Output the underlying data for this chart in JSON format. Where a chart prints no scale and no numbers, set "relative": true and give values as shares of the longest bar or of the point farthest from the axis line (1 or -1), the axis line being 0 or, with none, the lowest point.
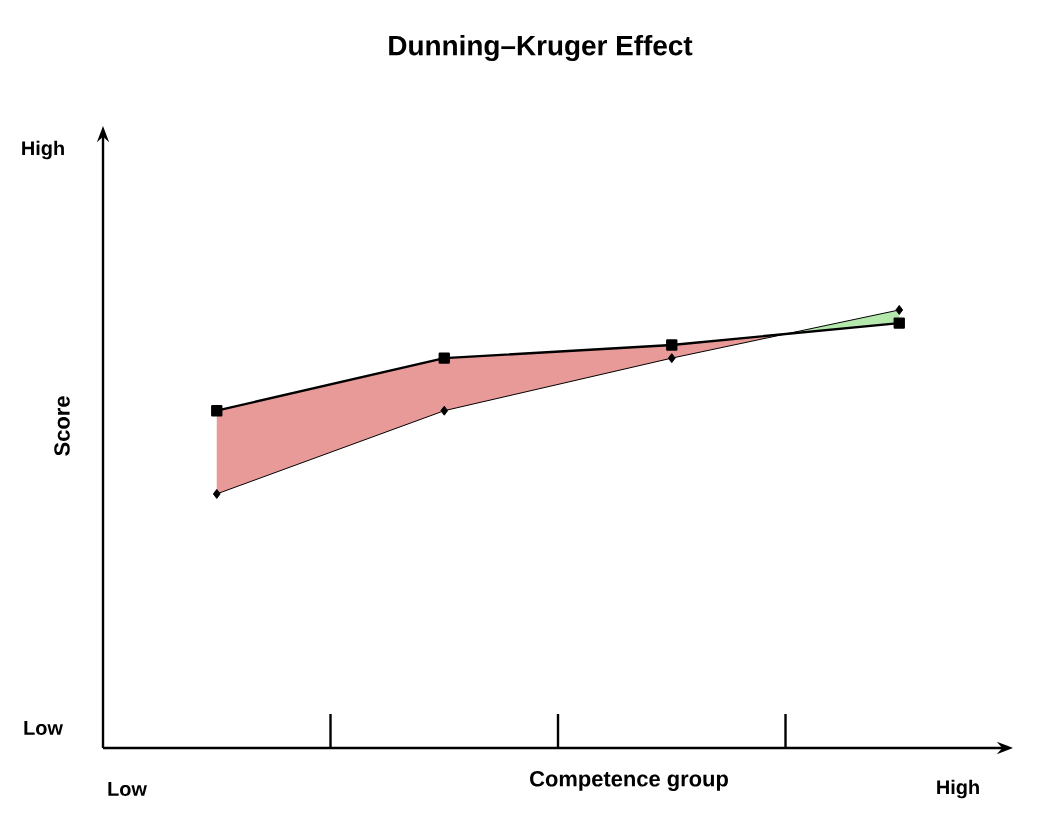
{
  "chart_data": {
    "type": "line",
    "title": "Dunning–Kruger Effect",
    "xlabel": "Competence group",
    "ylabel": "Score",
    "relative": true,
    "categories": [
      null,
      null,
      null,
      null
    ],
    "series": [
      {
        "color": "#000000",
        "marker": "square",
        "values": [
          0.77,
          0.89,
          0.92,
          0.97
        ]
      },
      {
        "color": "#000000",
        "marker": "diamond",
        "values": [
          0.58,
          0.77,
          0.89,
          1.0
        ]
      }
    ],
    "annotations": [
      "High",
      "Low",
      "Low",
      "High"
    ]
  }
}
